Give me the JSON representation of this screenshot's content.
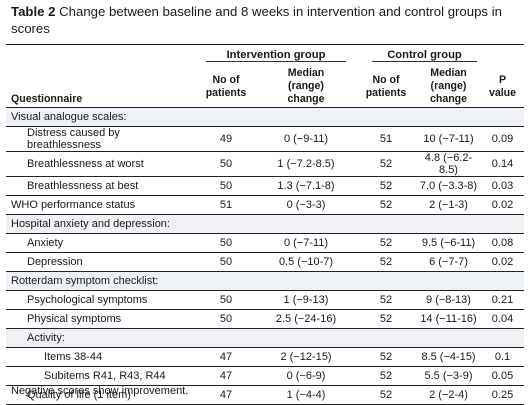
{
  "caption": {
    "label": "Table 2",
    "text": "Change between baseline and 8 weeks in intervention and control groups in scores"
  },
  "groups": {
    "intervention": "Intervention group",
    "control": "Control group"
  },
  "headers": {
    "questionnaire": "Questionnaire",
    "n_line1": "No of",
    "n_line2": "patients",
    "median_line1": "Median",
    "median_line2": "(range)",
    "median_line3": "change",
    "p_line1": "P",
    "p_line2": "value"
  },
  "rows": [
    {
      "indent": 0,
      "name": "Visual analogue scales:",
      "section": true,
      "n1": "",
      "m1": "",
      "n2": "",
      "m2": "",
      "p": ""
    },
    {
      "indent": 1,
      "name": "Distress caused by breathlessness",
      "n1": "49",
      "m1": "0 (−9-11)",
      "n2": "51",
      "m2": "10 (−7-11)",
      "p": "0.09"
    },
    {
      "indent": 1,
      "name": "Breathlessness at worst",
      "n1": "50",
      "m1": "1 (−7.2-8.5)",
      "n2": "52",
      "m2": "4.8 (−6.2-8.5)",
      "p": "0.14"
    },
    {
      "indent": 1,
      "name": "Breathlessness at best",
      "n1": "50",
      "m1": "1.3 (−7.1-8)",
      "n2": "52",
      "m2": "7.0 (−3.3-8)",
      "p": "0.03"
    },
    {
      "indent": 0,
      "name": "WHO performance status",
      "n1": "51",
      "m1": "0 (−3-3)",
      "n2": "52",
      "m2": "2 (−1-3)",
      "p": "0.02"
    },
    {
      "indent": 0,
      "name": "Hospital anxiety and depression:",
      "section": true,
      "n1": "",
      "m1": "",
      "n2": "",
      "m2": "",
      "p": ""
    },
    {
      "indent": 1,
      "name": "Anxiety",
      "n1": "50",
      "m1": "0 (−7-11)",
      "n2": "52",
      "m2": "9.5 (−6-11)",
      "p": "0.08"
    },
    {
      "indent": 1,
      "name": "Depression",
      "n1": "50",
      "m1": "0.5 (−10-7)",
      "n2": "52",
      "m2": "6 (−7-7)",
      "p": "0.02"
    },
    {
      "indent": 0,
      "name": "Rotterdam symptom checklist:",
      "section": true,
      "n1": "",
      "m1": "",
      "n2": "",
      "m2": "",
      "p": ""
    },
    {
      "indent": 1,
      "name": "Psychological symptoms",
      "n1": "50",
      "m1": "1 (−9-13)",
      "n2": "52",
      "m2": "9 (−8-13)",
      "p": "0.21"
    },
    {
      "indent": 1,
      "name": "Physical symptoms",
      "n1": "50",
      "m1": "2.5 (−24-16)",
      "n2": "52",
      "m2": "14 (−11-16)",
      "p": "0.04"
    },
    {
      "indent": 1,
      "name": "Activity:",
      "section": true,
      "n1": "",
      "m1": "",
      "n2": "",
      "m2": "",
      "p": ""
    },
    {
      "indent": 2,
      "name": "Items 38-44",
      "n1": "47",
      "m1": "2 (−12-15)",
      "n2": "52",
      "m2": "8.5 (−4-15)",
      "p": "0.1"
    },
    {
      "indent": 2,
      "name": "Subitems R41, R43, R44",
      "n1": "47",
      "m1": "0 (−6-9)",
      "n2": "52",
      "m2": "5.5 (−3-9)",
      "p": "0.05"
    },
    {
      "indent": 1,
      "name": "Quality of life (1 item)",
      "n1": "47",
      "m1": "1 (−4-4)",
      "n2": "52",
      "m2": "2 (−2-4)",
      "p": "0.25"
    }
  ],
  "footnote": "Negative scores show improvement."
}
